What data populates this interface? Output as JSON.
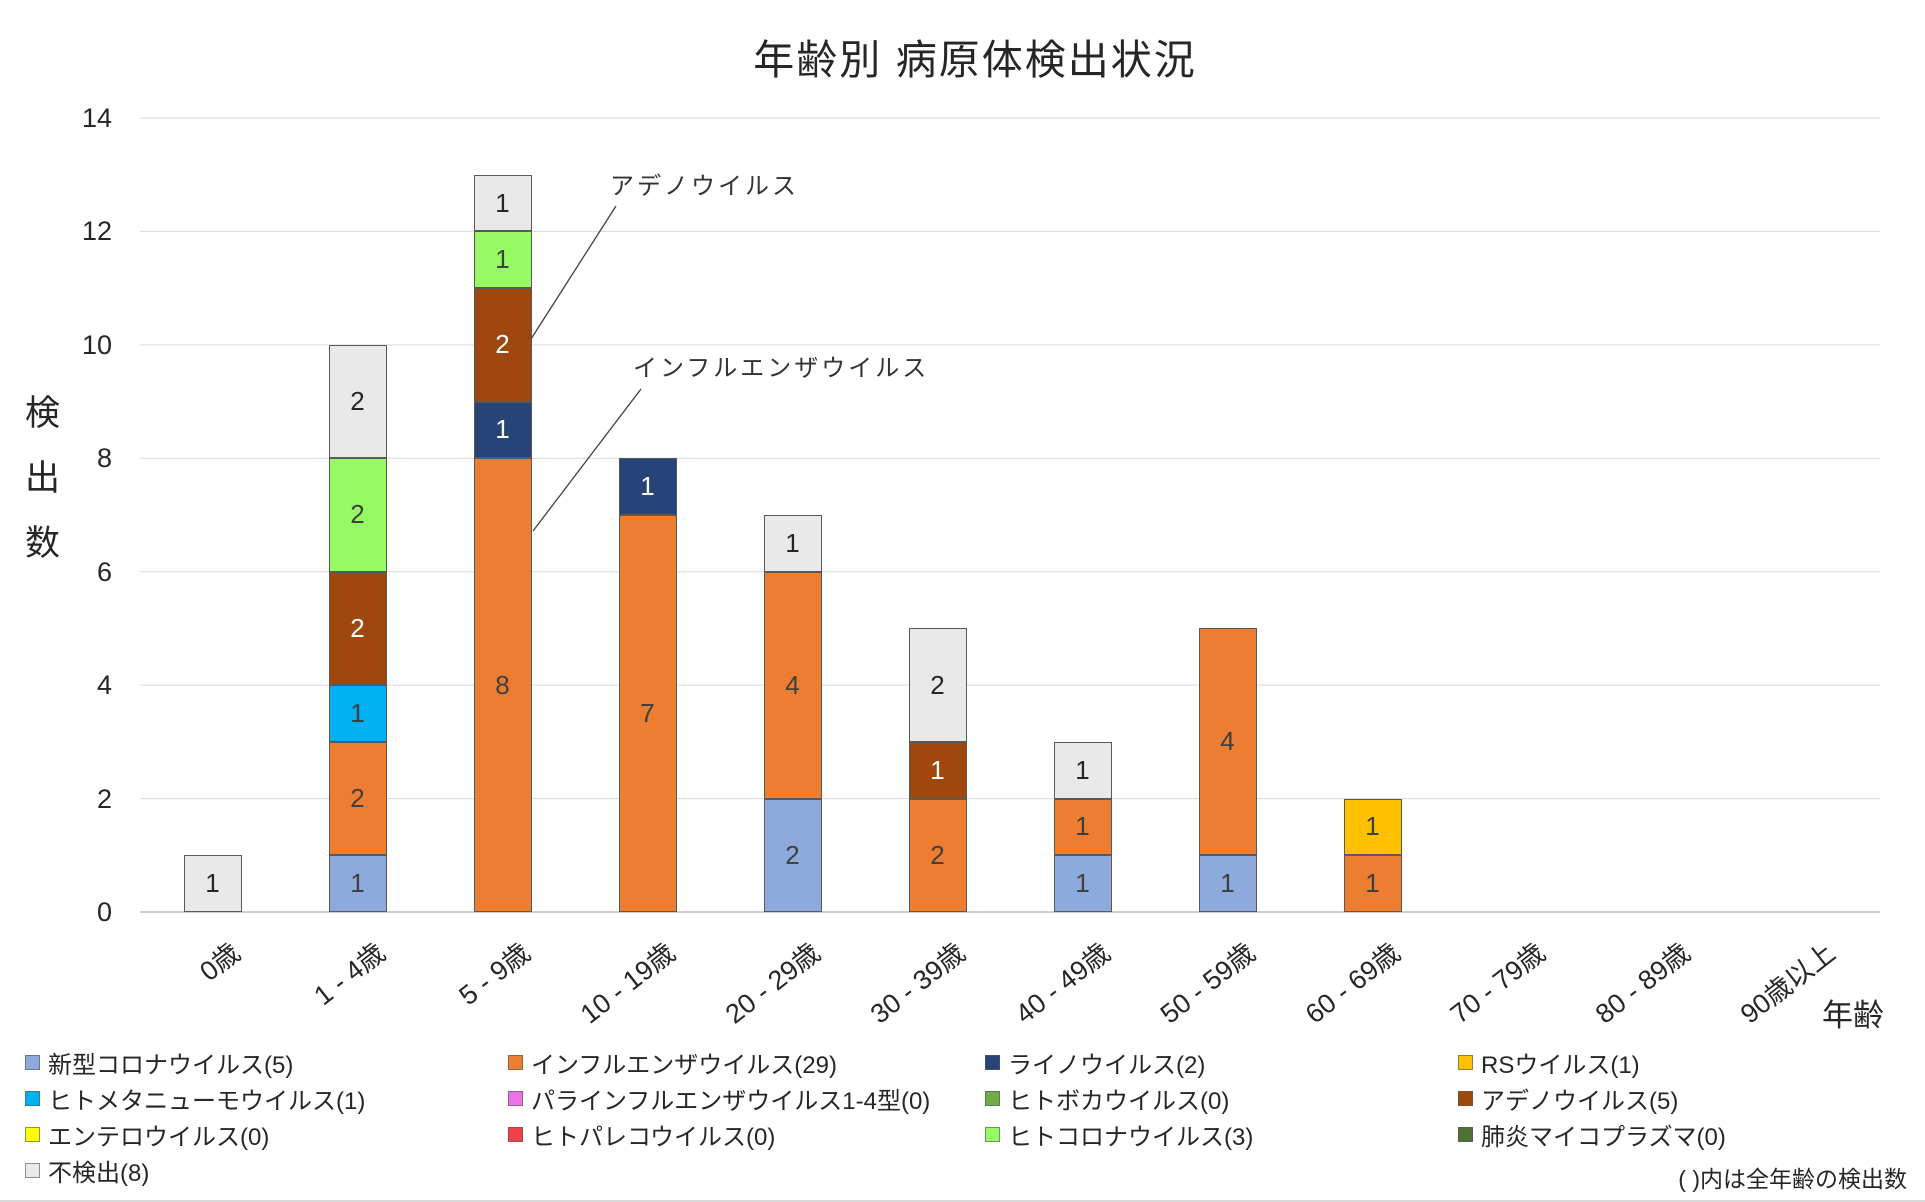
{
  "title": "年齢別 病原体検出状況",
  "note": "( )内は全年齢の検出数",
  "y_axis": {
    "title": "検出数"
  },
  "x_axis": {
    "title": "年齢"
  },
  "annotations": [
    {
      "text": "アデノウイルス",
      "target_category": "5 - 9歳",
      "target_series": "アデノウイルス"
    },
    {
      "text": "インフルエンザウイルス",
      "target_category": "5 - 9歳",
      "target_series": "インフルエンザウイルス"
    }
  ],
  "chart_data": {
    "type": "bar",
    "stacked": true,
    "title": "年齢別 病原体検出状況",
    "xlabel": "年齢",
    "ylabel": "検出数",
    "ylim": [
      0,
      14
    ],
    "y_ticks": [
      0,
      2,
      4,
      6,
      8,
      10,
      12,
      14
    ],
    "grid": true,
    "legend_position": "bottom",
    "data_labels": true,
    "categories": [
      "0歳",
      "1 - 4歳",
      "5 - 9歳",
      "10 - 19歳",
      "20 - 29歳",
      "30 - 39歳",
      "40 - 49歳",
      "50 - 59歳",
      "60 - 69歳",
      "70 - 79歳",
      "80 - 89歳",
      "90歳以上"
    ],
    "series": [
      {
        "name": "新型コロナウイルス",
        "label": "新型コロナウイルス(5)",
        "total": 5,
        "color": "#8EA9DB",
        "label_color": "#3F3F3F",
        "values": [
          0,
          1,
          0,
          0,
          2,
          0,
          1,
          1,
          0,
          0,
          0,
          0
        ]
      },
      {
        "name": "インフルエンザウイルス",
        "label": "インフルエンザウイルス(29)",
        "total": 29,
        "color": "#ED7D31",
        "label_color": "#3F3F3F",
        "values": [
          0,
          2,
          8,
          7,
          4,
          2,
          1,
          4,
          1,
          0,
          0,
          0
        ]
      },
      {
        "name": "ライノウイルス",
        "label": "ライノウイルス(2)",
        "total": 2,
        "color": "#264478",
        "label_color": "#FFFFFF",
        "values": [
          0,
          0,
          1,
          1,
          0,
          0,
          0,
          0,
          0,
          0,
          0,
          0
        ]
      },
      {
        "name": "RSウイルス",
        "label": "RSウイルス(1)",
        "total": 1,
        "color": "#FFC000",
        "label_color": "#3F3F3F",
        "values": [
          0,
          0,
          0,
          0,
          0,
          0,
          0,
          0,
          1,
          0,
          0,
          0
        ]
      },
      {
        "name": "ヒトメタニューモウイルス",
        "label": "ヒトメタニューモウイルス(1)",
        "total": 1,
        "color": "#00B0F0",
        "label_color": "#3F3F3F",
        "values": [
          0,
          1,
          0,
          0,
          0,
          0,
          0,
          0,
          0,
          0,
          0,
          0
        ]
      },
      {
        "name": "パラインフルエンザウイルス1-4型",
        "label": "パラインフルエンザウイルス1-4型(0)",
        "total": 0,
        "color": "#EE71E5",
        "label_color": "#3F3F3F",
        "values": [
          0,
          0,
          0,
          0,
          0,
          0,
          0,
          0,
          0,
          0,
          0,
          0
        ]
      },
      {
        "name": "ヒトボカウイルス",
        "label": "ヒトボカウイルス(0)",
        "total": 0,
        "color": "#70AD47",
        "label_color": "#3F3F3F",
        "values": [
          0,
          0,
          0,
          0,
          0,
          0,
          0,
          0,
          0,
          0,
          0,
          0
        ]
      },
      {
        "name": "アデノウイルス",
        "label": "アデノウイルス(5)",
        "total": 5,
        "color": "#9E480E",
        "label_color": "#FFFFFF",
        "values": [
          0,
          2,
          2,
          0,
          0,
          1,
          0,
          0,
          0,
          0,
          0,
          0
        ]
      },
      {
        "name": "エンテロウイルス",
        "label": "エンテロウイルス(0)",
        "total": 0,
        "color": "#FFFF00",
        "label_color": "#3F3F3F",
        "values": [
          0,
          0,
          0,
          0,
          0,
          0,
          0,
          0,
          0,
          0,
          0,
          0
        ]
      },
      {
        "name": "ヒトパレコウイルス",
        "label": "ヒトパレコウイルス(0)",
        "total": 0,
        "color": "#F0414B",
        "label_color": "#3F3F3F",
        "values": [
          0,
          0,
          0,
          0,
          0,
          0,
          0,
          0,
          0,
          0,
          0,
          0
        ]
      },
      {
        "name": "ヒトコロナウイルス",
        "label": "ヒトコロナウイルス(3)",
        "total": 3,
        "color": "#96FA64",
        "label_color": "#3F3F3F",
        "values": [
          0,
          2,
          1,
          0,
          0,
          0,
          0,
          0,
          0,
          0,
          0,
          0
        ]
      },
      {
        "name": "肺炎マイコプラズマ",
        "label": "肺炎マイコプラズマ(0)",
        "total": 0,
        "color": "#4F7231",
        "label_color": "#FFFFFF",
        "values": [
          0,
          0,
          0,
          0,
          0,
          0,
          0,
          0,
          0,
          0,
          0,
          0
        ]
      },
      {
        "name": "不検出",
        "label": "不検出(8)",
        "total": 8,
        "color": "#E9E9E9",
        "label_color": "#262626",
        "values": [
          1,
          2,
          1,
          0,
          1,
          2,
          1,
          0,
          0,
          0,
          0,
          0
        ]
      }
    ]
  }
}
